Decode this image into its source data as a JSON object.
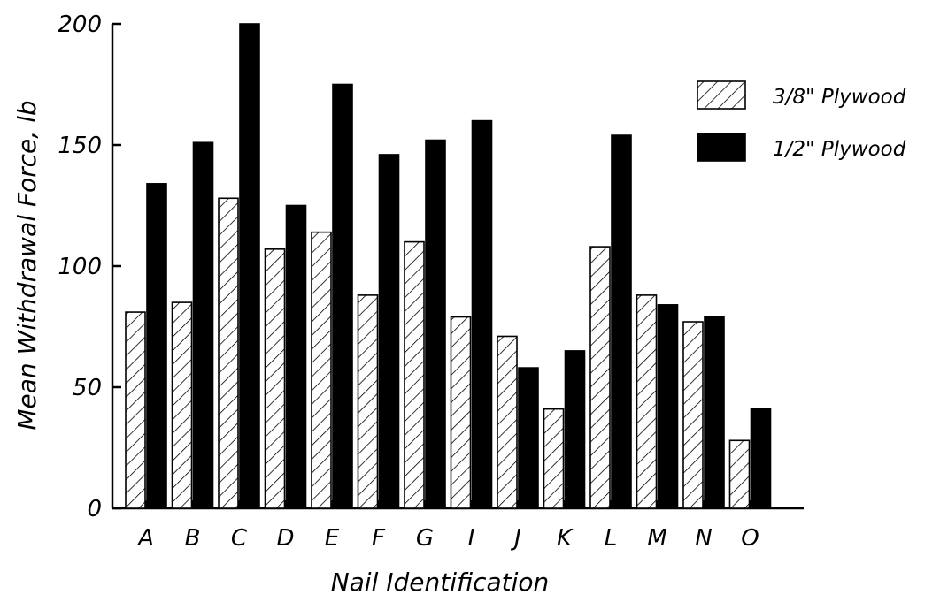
{
  "chart_data": {
    "type": "bar",
    "title": "",
    "xlabel": "Nail Identification",
    "ylabel": "Mean Withdrawal Force, lb",
    "categories": [
      "A",
      "B",
      "C",
      "D",
      "E",
      "F",
      "G",
      "I",
      "J",
      "K",
      "L",
      "M",
      "N",
      "O"
    ],
    "series": [
      {
        "name": "3/8\" Plywood",
        "pattern": "diagonal-hatch",
        "color": "#000000",
        "values": [
          81,
          85,
          128,
          107,
          114,
          88,
          110,
          79,
          71,
          41,
          108,
          88,
          77,
          28
        ]
      },
      {
        "name": "1/2\" Plywood",
        "pattern": "solid",
        "color": "#000000",
        "values": [
          134,
          151,
          200,
          125,
          175,
          146,
          152,
          160,
          58,
          65,
          154,
          84,
          79,
          41
        ]
      }
    ],
    "ylim": [
      0,
      200
    ],
    "yticks": [
      0,
      50,
      100,
      150,
      200
    ],
    "grid": false,
    "legend_position": "top-right"
  }
}
